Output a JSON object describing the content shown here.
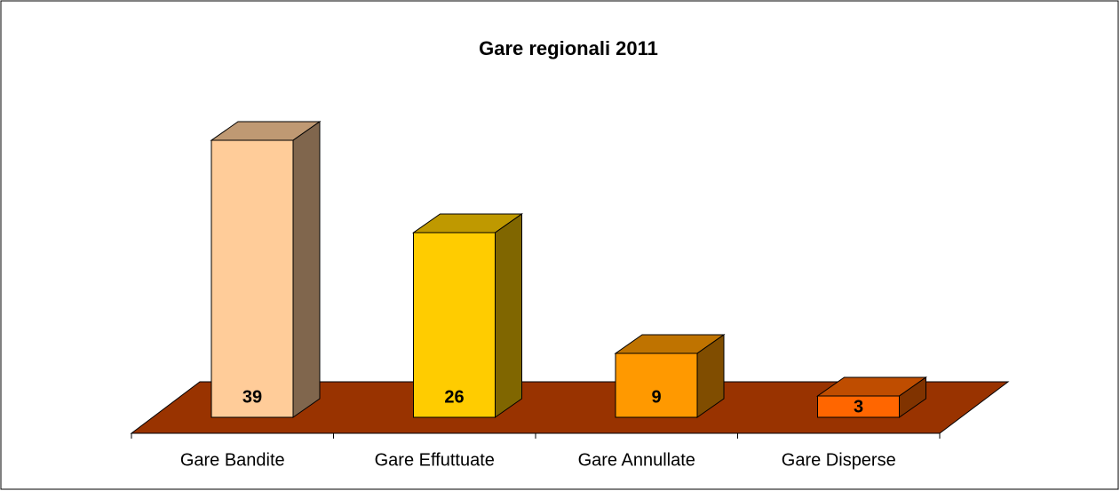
{
  "chart_data": {
    "type": "bar3d",
    "title": "Gare regionali 2011",
    "categories": [
      "Gare Bandite",
      "Gare Effuttuate",
      "Gare Annullate",
      "Gare Disperse"
    ],
    "values": [
      39,
      26,
      9,
      3
    ],
    "colors": [
      "#ffcc99",
      "#ffcc00",
      "#ff9900",
      "#ff6600"
    ],
    "floor_color": "#993300"
  }
}
